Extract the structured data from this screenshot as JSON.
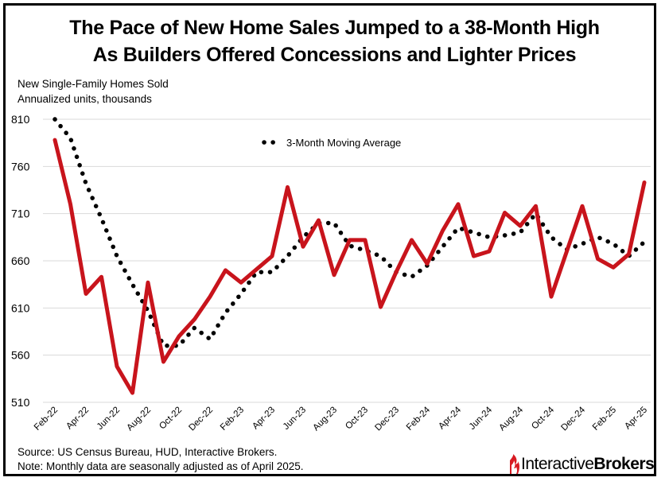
{
  "title": {
    "line1": "The Pace of New Home Sales Jumped to a 38-Month High",
    "line2": "As Builders Offered Concessions and Lighter Prices"
  },
  "y_axis_label": {
    "line1": "New Single-Family Homes Sold",
    "line2": "Annualized units, thousands"
  },
  "footer": {
    "source": "Source: US Census Bureau, HUD, Interactive Brokers.",
    "note": "Note: Monthly data are seasonally adjusted as of April 2025."
  },
  "logo": {
    "part1": "Interactive",
    "part2": "Brokers"
  },
  "colors": {
    "sales_line": "#c8141c",
    "moving_avg": "#000000",
    "grid": "#d9d9d9",
    "logo_red": "#d81b23"
  },
  "chart_data": {
    "type": "line",
    "title": "The Pace of New Home Sales Jumped to a 38-Month High As Builders Offered Concessions and Lighter Prices",
    "ylabel": "New Single-Family Homes Sold, Annualized units, thousands",
    "xlabel": "",
    "ylim": [
      510,
      810
    ],
    "yticks": [
      810,
      760,
      710,
      660,
      610,
      560,
      510
    ],
    "grid": true,
    "legend": "top-center",
    "x": [
      "Feb-22",
      "Mar-22",
      "Apr-22",
      "May-22",
      "Jun-22",
      "Jul-22",
      "Aug-22",
      "Sep-22",
      "Oct-22",
      "Nov-22",
      "Dec-22",
      "Jan-23",
      "Feb-23",
      "Mar-23",
      "Apr-23",
      "May-23",
      "Jun-23",
      "Jul-23",
      "Aug-23",
      "Sep-23",
      "Oct-23",
      "Nov-23",
      "Dec-23",
      "Jan-24",
      "Feb-24",
      "Mar-24",
      "Apr-24",
      "May-24",
      "Jun-24",
      "Jul-24",
      "Aug-24",
      "Sep-24",
      "Oct-24",
      "Nov-24",
      "Dec-24",
      "Jan-25",
      "Feb-25",
      "Mar-25",
      "Apr-25"
    ],
    "x_tick_labels": [
      "Feb-22",
      "Apr-22",
      "Jun-22",
      "Aug-22",
      "Oct-22",
      "Dec-22",
      "Feb-23",
      "Apr-23",
      "Jun-23",
      "Aug-23",
      "Oct-23",
      "Dec-23",
      "Feb-24",
      "Apr-24",
      "Jun-24",
      "Aug-24",
      "Oct-24",
      "Dec-24",
      "Feb-25",
      "Apr-25"
    ],
    "series": [
      {
        "name": "New Single-Family Homes Sold",
        "style": "solid",
        "values": [
          788,
          720,
          625,
          643,
          548,
          520,
          637,
          553,
          580,
          598,
          622,
          650,
          637,
          651,
          665,
          738,
          675,
          703,
          645,
          682,
          682,
          611,
          648,
          682,
          657,
          692,
          720,
          665,
          670,
          711,
          697,
          718,
          622,
          670,
          718,
          662,
          653,
          667,
          743
        ]
      },
      {
        "name": "3-Month Moving Average",
        "style": "dotted",
        "values": [
          810,
          790,
          742,
          705,
          665,
          635,
          607,
          570,
          570,
          589,
          577,
          605,
          625,
          648,
          648,
          665,
          685,
          700,
          700,
          676,
          671,
          665,
          648,
          643,
          655,
          675,
          695,
          690,
          685,
          687,
          690,
          710,
          685,
          672,
          678,
          685,
          678,
          665,
          680
        ]
      }
    ]
  }
}
